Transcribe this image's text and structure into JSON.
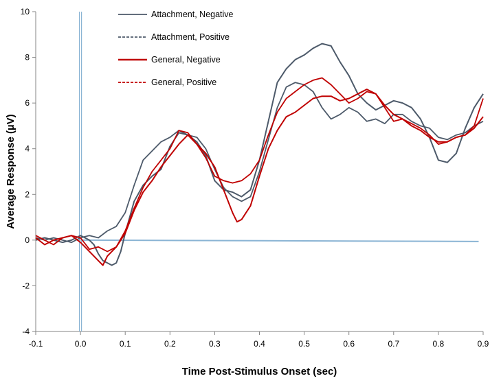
{
  "chart_data": {
    "type": "line",
    "xlabel": "Time Post-Stimulus Onset (sec)",
    "ylabel": "Average Response (µV)",
    "xlim": [
      -0.1,
      0.9
    ],
    "ylim": [
      -4,
      10
    ],
    "xticks": [
      -0.1,
      0.0,
      0.1,
      0.2,
      0.3,
      0.4,
      0.5,
      0.6,
      0.7,
      0.8,
      0.9
    ],
    "xtick_labels": [
      "-0.1",
      "0.0",
      "0.1",
      "0.2",
      "0.3",
      "0.4",
      "0.5",
      "0.6",
      "0.7",
      "0.8",
      "0.9"
    ],
    "yticks": [
      -4,
      -2,
      0,
      2,
      4,
      6,
      8,
      10
    ],
    "ytick_labels": [
      "-4",
      "-2",
      "0",
      "2",
      "4",
      "6",
      "8",
      "10"
    ],
    "grid": false,
    "legend": "top-left",
    "series": [
      {
        "name": "Attachment, Negative",
        "color": "#4d5a6a",
        "dash": "solid",
        "x": [
          -0.1,
          -0.08,
          -0.06,
          -0.04,
          -0.02,
          0.0,
          0.01,
          0.02,
          0.03,
          0.04,
          0.05,
          0.06,
          0.07,
          0.08,
          0.09,
          0.1,
          0.12,
          0.14,
          0.16,
          0.18,
          0.2,
          0.22,
          0.24,
          0.26,
          0.28,
          0.3,
          0.32,
          0.34,
          0.36,
          0.38,
          0.4,
          0.42,
          0.44,
          0.46,
          0.48,
          0.5,
          0.52,
          0.54,
          0.56,
          0.58,
          0.6,
          0.62,
          0.64,
          0.66,
          0.68,
          0.7,
          0.72,
          0.74,
          0.76,
          0.78,
          0.8,
          0.82,
          0.84,
          0.86,
          0.88,
          0.9
        ],
        "y": [
          0.0,
          0.1,
          0.0,
          -0.1,
          0.0,
          0.2,
          0.1,
          0.0,
          -0.2,
          -0.6,
          -0.9,
          -1.0,
          -1.1,
          -1.0,
          -0.5,
          0.3,
          1.7,
          2.4,
          2.8,
          3.1,
          4.1,
          4.7,
          4.6,
          4.3,
          3.7,
          2.6,
          2.2,
          2.1,
          1.9,
          2.2,
          3.5,
          5.2,
          6.9,
          7.5,
          7.9,
          8.1,
          8.4,
          8.6,
          8.5,
          7.8,
          7.2,
          6.4,
          6.0,
          5.7,
          5.9,
          6.1,
          6.0,
          5.8,
          5.3,
          4.5,
          3.5,
          3.4,
          3.8,
          4.9,
          5.8,
          6.4
        ]
      },
      {
        "name": "Attachment, Positive",
        "color": "#4d5a6a",
        "dash": "dashed",
        "x": [
          -0.1,
          -0.08,
          -0.06,
          -0.04,
          -0.02,
          0.0,
          0.02,
          0.04,
          0.06,
          0.08,
          0.1,
          0.12,
          0.14,
          0.16,
          0.18,
          0.2,
          0.22,
          0.24,
          0.26,
          0.28,
          0.3,
          0.32,
          0.34,
          0.36,
          0.38,
          0.4,
          0.42,
          0.44,
          0.46,
          0.48,
          0.5,
          0.52,
          0.54,
          0.56,
          0.58,
          0.6,
          0.62,
          0.64,
          0.66,
          0.68,
          0.7,
          0.72,
          0.74,
          0.76,
          0.78,
          0.8,
          0.82,
          0.84,
          0.86,
          0.88,
          0.9
        ],
        "y": [
          0.1,
          0.0,
          0.1,
          0.0,
          -0.1,
          0.1,
          0.2,
          0.1,
          0.4,
          0.6,
          1.2,
          2.4,
          3.5,
          3.9,
          4.3,
          4.5,
          4.8,
          4.6,
          4.5,
          4.0,
          3.1,
          2.3,
          1.9,
          1.7,
          1.9,
          3.0,
          4.4,
          5.8,
          6.7,
          6.9,
          6.8,
          6.5,
          5.8,
          5.3,
          5.5,
          5.8,
          5.6,
          5.2,
          5.3,
          5.1,
          5.5,
          5.5,
          5.2,
          5.0,
          4.9,
          4.5,
          4.4,
          4.6,
          4.7,
          5.0,
          5.2
        ]
      },
      {
        "name": "General, Negative",
        "color": "#c00000",
        "dash": "solid",
        "x": [
          -0.1,
          -0.08,
          -0.06,
          -0.04,
          -0.02,
          0.0,
          0.02,
          0.04,
          0.05,
          0.06,
          0.08,
          0.1,
          0.12,
          0.14,
          0.16,
          0.18,
          0.2,
          0.22,
          0.24,
          0.26,
          0.28,
          0.3,
          0.32,
          0.34,
          0.35,
          0.36,
          0.38,
          0.4,
          0.42,
          0.44,
          0.46,
          0.48,
          0.5,
          0.52,
          0.54,
          0.56,
          0.58,
          0.6,
          0.62,
          0.64,
          0.66,
          0.68,
          0.7,
          0.72,
          0.74,
          0.76,
          0.78,
          0.8,
          0.82,
          0.84,
          0.86,
          0.88,
          0.9
        ],
        "y": [
          0.1,
          -0.2,
          0.0,
          0.1,
          0.2,
          -0.1,
          -0.5,
          -0.9,
          -1.1,
          -0.7,
          -0.3,
          0.3,
          1.3,
          2.1,
          2.6,
          3.2,
          3.7,
          4.2,
          4.6,
          4.2,
          3.8,
          3.2,
          2.2,
          1.2,
          0.8,
          0.9,
          1.5,
          2.8,
          4.0,
          4.8,
          5.4,
          5.6,
          5.9,
          6.2,
          6.3,
          6.3,
          6.1,
          6.2,
          6.4,
          6.6,
          6.4,
          5.9,
          5.5,
          5.3,
          5.0,
          4.8,
          4.5,
          4.3,
          4.3,
          4.5,
          4.6,
          4.9,
          5.4
        ]
      },
      {
        "name": "General, Positive",
        "color": "#c00000",
        "dash": "dashed",
        "x": [
          -0.1,
          -0.08,
          -0.06,
          -0.04,
          -0.02,
          0.0,
          0.02,
          0.04,
          0.06,
          0.08,
          0.1,
          0.12,
          0.14,
          0.16,
          0.18,
          0.2,
          0.22,
          0.24,
          0.26,
          0.28,
          0.3,
          0.32,
          0.34,
          0.36,
          0.38,
          0.4,
          0.42,
          0.44,
          0.46,
          0.48,
          0.5,
          0.52,
          0.54,
          0.56,
          0.58,
          0.6,
          0.62,
          0.64,
          0.66,
          0.68,
          0.7,
          0.72,
          0.74,
          0.76,
          0.78,
          0.8,
          0.82,
          0.84,
          0.86,
          0.88,
          0.9
        ],
        "y": [
          0.2,
          0.0,
          -0.2,
          0.1,
          0.2,
          0.1,
          -0.4,
          -0.3,
          -0.5,
          -0.3,
          0.4,
          1.4,
          2.3,
          3.0,
          3.5,
          4.0,
          4.8,
          4.7,
          4.2,
          3.6,
          2.8,
          2.6,
          2.5,
          2.6,
          2.9,
          3.5,
          4.6,
          5.6,
          6.2,
          6.5,
          6.8,
          7.0,
          7.1,
          6.8,
          6.4,
          6.0,
          6.2,
          6.5,
          6.4,
          5.8,
          5.2,
          5.3,
          5.1,
          4.9,
          4.6,
          4.2,
          4.3,
          4.5,
          4.6,
          5.0,
          6.2
        ]
      }
    ],
    "reference_lines": [
      {
        "name": "stimulus-onset",
        "type": "vertical",
        "x": 0.0,
        "color": "#8ab4d4"
      },
      {
        "name": "baseline",
        "type": "horizontal",
        "y": 0.0,
        "x_range": [
          0.0,
          0.89
        ],
        "color": "#8ab4d4"
      }
    ]
  }
}
